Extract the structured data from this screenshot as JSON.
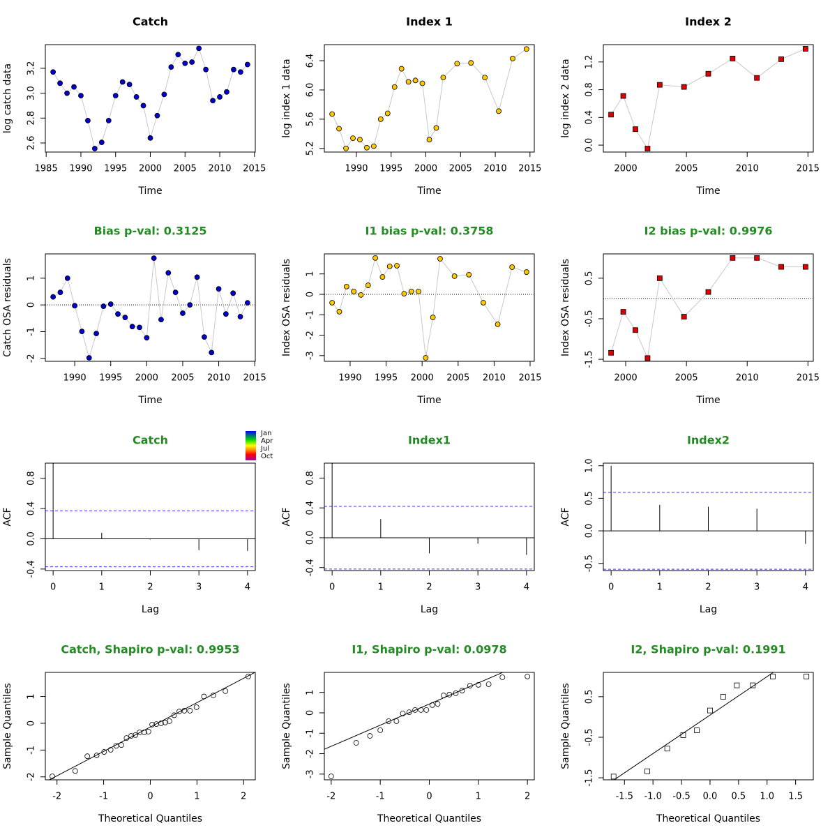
{
  "chart_data": [
    {
      "type": "line",
      "title": "Catch",
      "title_color": "#000000",
      "xlabel": "Time",
      "ylabel": "log catch data",
      "color": "#0000cd",
      "marker": "circle",
      "x": [
        1986,
        1987,
        1988,
        1989,
        1990,
        1991,
        1992,
        1993,
        1994,
        1995,
        1996,
        1997,
        1998,
        1999,
        2000,
        2001,
        2002,
        2003,
        2004,
        2005,
        2006,
        2007,
        2008,
        2009,
        2010,
        2011,
        2012,
        2013,
        2014
      ],
      "values": [
        3.17,
        3.08,
        3.0,
        3.05,
        2.98,
        2.78,
        2.555,
        2.605,
        2.78,
        2.98,
        3.09,
        3.07,
        2.97,
        2.9,
        2.64,
        2.82,
        2.99,
        3.21,
        3.31,
        3.24,
        3.25,
        3.36,
        3.19,
        2.94,
        2.97,
        3.01,
        3.19,
        3.17,
        3.23
      ],
      "xlim": [
        1984.88,
        2015.12
      ],
      "xticks": [
        1985,
        1990,
        1995,
        2000,
        2005,
        2010,
        2015
      ],
      "ylim": [
        2.527,
        3.39
      ],
      "yticks": [
        2.6,
        2.8,
        {
          "value": 3,
          "label": "3.0"
        },
        3.2
      ]
    },
    {
      "type": "line",
      "title": "Index 1",
      "title_color": "#000000",
      "xlabel": "Time",
      "ylabel": "log index 1 data",
      "color": "#ffc800",
      "marker": "circle",
      "x": [
        1986.5,
        1987.5,
        1988.5,
        1989.5,
        1990.5,
        1991.5,
        1992.5,
        1993.5,
        1994.5,
        1995.5,
        1996.5,
        1997.5,
        1998.5,
        1999.5,
        2000.5,
        2001.5,
        2002.5,
        2004.5,
        2006.5,
        2008.5,
        2010.5,
        2012.5,
        2014.5
      ],
      "values": [
        5.67,
        5.47,
        5.2,
        5.34,
        5.32,
        5.21,
        5.23,
        5.6,
        5.68,
        6.04,
        6.29,
        6.11,
        6.13,
        6.09,
        5.32,
        5.48,
        6.17,
        6.36,
        6.37,
        6.17,
        5.71,
        6.43,
        6.56
      ],
      "xlim": [
        1985.38,
        2015.62
      ],
      "xticks": [
        1990,
        1995,
        2000,
        2005,
        2010,
        2015
      ],
      "ylim": [
        5.15,
        6.62
      ],
      "yticks": [
        5.2,
        5.6,
        {
          "value": 6,
          "label": "6.0"
        },
        6.4
      ]
    },
    {
      "type": "line",
      "title": "Index 2",
      "title_color": "#000000",
      "xlabel": "Time",
      "ylabel": "log index 2 data",
      "color": "#dd0000",
      "marker": "square",
      "x": [
        1998.8,
        1999.8,
        2000.8,
        2001.8,
        2002.8,
        2004.8,
        2006.8,
        2008.8,
        2010.8,
        2012.8,
        2014.8
      ],
      "values": [
        0.44,
        0.71,
        0.23,
        -0.05,
        0.87,
        0.84,
        1.03,
        1.25,
        0.97,
        1.24,
        1.39
      ],
      "xlim": [
        1998.16,
        2015.44
      ],
      "xticks": [
        2000,
        2005,
        2010,
        2015
      ],
      "ylim": [
        -0.1,
        1.45
      ],
      "yticks": [
        {
          "value": 0,
          "label": "0.0"
        },
        0.4,
        0.8,
        1.2
      ]
    },
    {
      "type": "line",
      "title": "Bias p-val: 0.3125",
      "title_color": "#228b22",
      "xlabel": "Time",
      "ylabel": "Catch OSA residuals",
      "color": "#0000cd",
      "marker": "circle",
      "reference_line": 0,
      "color_legend": [
        "Jan",
        "Apr",
        "Jul",
        "Oct"
      ],
      "x": [
        1987,
        1988,
        1989,
        1990,
        1991,
        1992,
        1993,
        1994,
        1995,
        1996,
        1997,
        1998,
        1999,
        2000,
        2001,
        2002,
        2003,
        2004,
        2005,
        2006,
        2007,
        2008,
        2009,
        2010,
        2011,
        2012,
        2013,
        2014
      ],
      "values": [
        0.3,
        0.47,
        1.0,
        -0.03,
        -0.99,
        -1.98,
        -1.07,
        -0.05,
        0.03,
        -0.34,
        -0.47,
        -0.81,
        -0.84,
        -1.23,
        1.75,
        -0.55,
        1.2,
        0.47,
        -0.31,
        0.0,
        1.04,
        -1.2,
        -1.78,
        0.6,
        -0.34,
        0.44,
        -0.44,
        0.08
      ],
      "xlim": [
        1985.92,
        2015.08
      ],
      "xticks": [
        1990,
        1995,
        2000,
        2005,
        2010,
        2015
      ],
      "ylim": [
        -2.11,
        1.91
      ],
      "yticks": [
        -2,
        -1,
        0,
        1
      ]
    },
    {
      "type": "line",
      "title": "I1 bias p-val: 0.3758",
      "title_color": "#228b22",
      "xlabel": "Time",
      "ylabel": "Index OSA residuals",
      "color": "#ffc800",
      "marker": "circle",
      "reference_line": 0,
      "x": [
        1987.5,
        1988.5,
        1989.5,
        1990.5,
        1991.5,
        1992.5,
        1993.5,
        1994.5,
        1995.5,
        1996.5,
        1997.5,
        1998.5,
        1999.5,
        2000.5,
        2001.5,
        2002.5,
        2004.5,
        2006.5,
        2008.5,
        2010.5,
        2012.5,
        2014.5
      ],
      "values": [
        -0.41,
        -0.85,
        0.38,
        0.14,
        -0.03,
        0.44,
        1.78,
        0.85,
        1.37,
        1.4,
        0.03,
        0.14,
        0.14,
        -3.11,
        -1.13,
        1.74,
        0.89,
        0.96,
        -0.41,
        -1.47,
        1.33,
        1.09
      ],
      "xlim": [
        1986.42,
        2015.58
      ],
      "xticks": [
        1990,
        1995,
        2000,
        2005,
        2010,
        2015
      ],
      "ylim": [
        -3.28,
        1.98
      ],
      "yticks": [
        -3,
        -2,
        -1,
        0,
        1
      ]
    },
    {
      "type": "line",
      "title": "I2 bias p-val: 0.9976",
      "title_color": "#228b22",
      "xlabel": "Time",
      "ylabel": "Index OSA residuals",
      "color": "#dd0000",
      "marker": "square",
      "reference_line": 0,
      "x": [
        1998.8,
        1999.8,
        2000.8,
        2001.8,
        2002.8,
        2004.8,
        2006.8,
        2008.8,
        2010.8,
        2012.8,
        2014.8
      ],
      "values": [
        -1.34,
        -0.33,
        -0.78,
        -1.47,
        0.5,
        -0.45,
        0.16,
        1.0,
        1.0,
        0.78,
        0.78
      ],
      "xlim": [
        1998.16,
        2015.44
      ],
      "xticks": [
        2000,
        2005,
        2010,
        2015
      ],
      "ylim": [
        -1.55,
        1.1
      ],
      "yticks": [
        -1.5,
        -0.5,
        0.5
      ]
    },
    {
      "type": "acf",
      "title": "Catch",
      "title_color": "#228b22",
      "xlabel": "Lag",
      "ylabel": "ACF",
      "ci": 0.37,
      "ci_color": "#3333ff",
      "x": [
        0,
        1,
        2,
        3,
        4
      ],
      "values": [
        1.0,
        0.08,
        -0.01,
        -0.15,
        -0.16
      ],
      "xlim": [
        -0.16,
        4.16
      ],
      "xticks": [
        0,
        1,
        2,
        3,
        4
      ],
      "ylim": [
        -0.42,
        1.0
      ],
      "yticks": [
        -0.4,
        {
          "value": 0,
          "label": "0.0"
        },
        0.4,
        0.8
      ]
    },
    {
      "type": "acf",
      "title": "Index1",
      "title_color": "#228b22",
      "xlabel": "Lag",
      "ylabel": "ACF",
      "ci": 0.42,
      "ci_color": "#3333ff",
      "x": [
        0,
        1,
        2,
        3,
        4
      ],
      "values": [
        1.0,
        0.25,
        -0.21,
        -0.08,
        -0.23
      ],
      "xlim": [
        -0.16,
        4.16
      ],
      "xticks": [
        0,
        1,
        2,
        3,
        4
      ],
      "ylim": [
        -0.44,
        1.0
      ],
      "yticks": [
        -0.4,
        {
          "value": 0,
          "label": "0.0"
        },
        0.4,
        0.8
      ]
    },
    {
      "type": "acf",
      "title": "Index2",
      "title_color": "#228b22",
      "xlabel": "Lag",
      "ylabel": "ACF",
      "ci": 0.59,
      "ci_color": "#3333ff",
      "x": [
        0,
        1,
        2,
        3,
        4
      ],
      "values": [
        1.0,
        0.4,
        0.37,
        0.34,
        -0.2
      ],
      "xlim": [
        -0.16,
        4.16
      ],
      "xticks": [
        0,
        1,
        2,
        3,
        4
      ],
      "ylim": [
        -0.61,
        1.04
      ],
      "yticks": [
        -0.5,
        {
          "value": 0,
          "label": "0.0"
        },
        0.5,
        {
          "value": 1,
          "label": "1.0"
        }
      ]
    },
    {
      "type": "qq",
      "title": "Catch, Shapiro p-val: 0.9953",
      "title_color": "#228b22",
      "xlabel": "Theoretical Quantiles",
      "ylabel": "Sample Quantiles",
      "marker": "circle",
      "x": [
        -2.1,
        -1.61,
        -1.35,
        -1.15,
        -0.99,
        -0.85,
        -0.73,
        -0.62,
        -0.51,
        -0.41,
        -0.32,
        -0.23,
        -0.13,
        -0.04,
        0.04,
        0.13,
        0.23,
        0.32,
        0.41,
        0.51,
        0.62,
        0.73,
        0.85,
        0.99,
        1.15,
        1.35,
        1.61,
        2.1
      ],
      "values": [
        -1.98,
        -1.78,
        -1.23,
        -1.2,
        -1.07,
        -0.99,
        -0.84,
        -0.81,
        -0.55,
        -0.47,
        -0.44,
        -0.34,
        -0.34,
        -0.31,
        -0.05,
        -0.03,
        0,
        0.03,
        0.08,
        0.3,
        0.44,
        0.47,
        0.47,
        0.6,
        1.0,
        1.04,
        1.2,
        1.75
      ],
      "qqline": {
        "intercept": -0.14,
        "slope": 0.91
      },
      "xlim": [
        -2.25,
        2.25
      ],
      "xticks": [
        -2,
        -1,
        0,
        1,
        2
      ],
      "ylim": [
        -2.11,
        1.9
      ],
      "yticks": [
        -2,
        -1,
        0,
        1
      ]
    },
    {
      "type": "qq",
      "title": "I1, Shapiro p-val: 0.0978",
      "title_color": "#228b22",
      "xlabel": "Theoretical Quantiles",
      "ylabel": "Sample Quantiles",
      "marker": "circle",
      "x": [
        -2.0,
        -1.49,
        -1.21,
        -1.0,
        -0.83,
        -0.67,
        -0.54,
        -0.41,
        -0.29,
        -0.17,
        -0.06,
        0.06,
        0.17,
        0.29,
        0.41,
        0.54,
        0.67,
        0.83,
        1.0,
        1.21,
        1.49,
        2.0
      ],
      "values": [
        -3.11,
        -1.47,
        -1.13,
        -0.85,
        -0.41,
        -0.41,
        -0.03,
        0.03,
        0.14,
        0.14,
        0.14,
        0.38,
        0.44,
        0.85,
        0.89,
        0.96,
        1.09,
        1.33,
        1.37,
        1.4,
        1.74,
        1.78
      ],
      "qqline": {
        "intercept": 0.43,
        "slope": 1.035
      },
      "xlim": [
        -2.14,
        2.14
      ],
      "xticks": [
        -2,
        -1,
        0,
        1,
        2
      ],
      "ylim": [
        -3.28,
        1.98
      ],
      "yticks": [
        -3,
        -2,
        -1,
        0,
        1
      ]
    },
    {
      "type": "qq",
      "title": "I2, Shapiro p-val: 0.1991",
      "title_color": "#228b22",
      "xlabel": "Theoretical Quantiles",
      "ylabel": "Sample Quantiles",
      "marker": "square",
      "x": [
        -1.69,
        -1.1,
        -0.75,
        -0.47,
        -0.23,
        0,
        0.23,
        0.47,
        0.75,
        1.1,
        1.69
      ],
      "values": [
        -1.47,
        -1.34,
        -0.78,
        -0.45,
        -0.33,
        0.16,
        0.5,
        0.78,
        0.78,
        1.0,
        1.0
      ],
      "qqline": {
        "intercept": 0.046,
        "slope": 0.95
      },
      "xlim": [
        -1.87,
        1.81
      ],
      "xticks": [
        -1.5,
        {
          "value": -1,
          "label": "-1.0"
        },
        -0.5,
        {
          "value": 0,
          "label": "0.0"
        },
        0.5,
        {
          "value": 1,
          "label": "1.0"
        },
        1.5
      ],
      "ylim": [
        -1.55,
        1.1
      ],
      "yticks": [
        -1.5,
        -0.5,
        0.5
      ]
    }
  ]
}
